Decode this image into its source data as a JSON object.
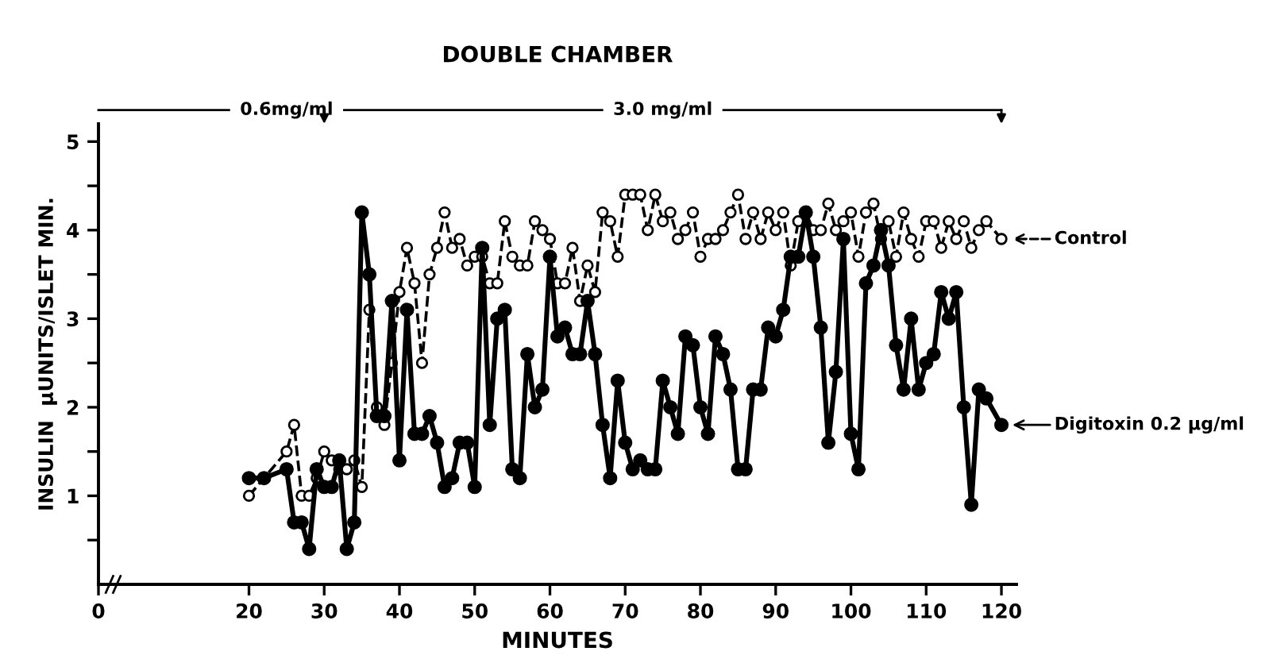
{
  "chart_data": {
    "type": "line",
    "title": "DOUBLE CHAMBER",
    "xlabel": "MINUTES",
    "ylabel": "INSULIN  µUNITS/ISLET MIN.",
    "xlim": [
      0,
      122
    ],
    "xticks": [
      0,
      20,
      30,
      40,
      50,
      60,
      70,
      80,
      90,
      100,
      110,
      120
    ],
    "ylim": [
      0,
      5.2
    ],
    "yticks": [
      {
        "value": 0.5,
        "label": null
      },
      1,
      {
        "value": 1.5,
        "label": null
      },
      2,
      {
        "value": 2.5,
        "label": null
      },
      3,
      {
        "value": 3.5,
        "label": null
      },
      4,
      {
        "value": 4.5,
        "label": null
      },
      5
    ],
    "annotations": [
      "0.6mg/ml",
      "3.0 mg/ml"
    ],
    "grid": false,
    "legend": "right",
    "marker": "circle",
    "series": [
      {
        "name": "Control",
        "color": "#000000",
        "line_style": "dashed",
        "x": [
          20,
          25,
          26,
          27,
          28,
          29,
          30,
          31,
          32,
          33,
          34,
          35,
          36,
          37,
          38,
          39,
          40,
          41,
          42,
          43,
          44,
          45,
          46,
          47,
          48,
          49,
          50,
          51,
          52,
          53,
          54,
          55,
          56,
          57,
          58,
          59,
          60,
          61,
          62,
          63,
          64,
          65,
          66,
          67,
          68,
          69,
          70,
          71,
          72,
          73,
          74,
          75,
          76,
          77,
          78,
          79,
          80,
          81,
          82,
          83,
          84,
          85,
          86,
          87,
          88,
          89,
          90,
          91,
          92,
          93,
          94,
          95,
          96,
          97,
          98,
          99,
          100,
          101,
          102,
          103,
          104,
          105,
          106,
          107,
          108,
          109,
          110,
          111,
          112,
          113,
          114,
          115,
          116,
          117,
          118,
          120
        ],
        "values": [
          1.0,
          1.5,
          1.8,
          1.0,
          1.0,
          1.2,
          1.5,
          1.4,
          1.3,
          1.3,
          1.4,
          1.1,
          3.1,
          2.0,
          1.8,
          2.5,
          3.3,
          3.8,
          3.4,
          2.5,
          3.5,
          3.8,
          4.2,
          3.8,
          3.9,
          3.6,
          3.7,
          3.7,
          3.4,
          3.4,
          4.1,
          3.7,
          3.6,
          3.6,
          4.1,
          4.0,
          3.9,
          3.4,
          3.4,
          3.8,
          3.2,
          3.6,
          3.3,
          4.2,
          4.1,
          3.7,
          4.4,
          4.4,
          4.4,
          4.0,
          4.4,
          4.1,
          4.2,
          3.9,
          4.0,
          4.2,
          3.7,
          3.9,
          3.9,
          4.0,
          4.2,
          4.4,
          3.9,
          4.2,
          3.9,
          4.2,
          4.0,
          4.2,
          3.6,
          4.1,
          4.2,
          4.0,
          4.0,
          4.3,
          4.0,
          4.1,
          4.2,
          3.7,
          4.2,
          4.3,
          3.9,
          4.1,
          3.7,
          4.2,
          3.9,
          3.7,
          4.1,
          4.1,
          3.8,
          4.1,
          3.9,
          4.1,
          3.8,
          4.0,
          4.1,
          3.9
        ]
      },
      {
        "name": "Digitoxin 0.2 µg/ml",
        "color": "#000000",
        "line_style": "solid",
        "x": [
          20,
          22,
          25,
          26,
          27,
          28,
          29,
          30,
          31,
          32,
          33,
          34,
          35,
          36,
          37,
          38,
          39,
          40,
          41,
          42,
          43,
          44,
          45,
          46,
          47,
          48,
          49,
          50,
          51,
          52,
          53,
          54,
          55,
          56,
          57,
          58,
          59,
          60,
          61,
          62,
          63,
          64,
          65,
          66,
          67,
          68,
          69,
          70,
          71,
          72,
          73,
          74,
          75,
          76,
          77,
          78,
          79,
          80,
          81,
          82,
          83,
          84,
          85,
          86,
          87,
          88,
          89,
          90,
          91,
          92,
          93,
          94,
          95,
          96,
          97,
          98,
          99,
          100,
          101,
          102,
          103,
          104,
          105,
          106,
          107,
          108,
          109,
          110,
          111,
          112,
          113,
          114,
          115,
          116,
          117,
          118,
          120
        ],
        "values": [
          1.2,
          1.2,
          1.3,
          0.7,
          0.7,
          0.4,
          1.3,
          1.1,
          1.1,
          1.4,
          0.4,
          0.7,
          4.2,
          3.5,
          1.9,
          1.9,
          3.2,
          1.4,
          3.1,
          1.7,
          1.7,
          1.9,
          1.6,
          1.1,
          1.2,
          1.6,
          1.6,
          1.1,
          3.8,
          1.8,
          3.0,
          3.1,
          1.3,
          1.2,
          2.6,
          2.0,
          2.2,
          3.7,
          2.8,
          2.9,
          2.6,
          2.6,
          3.2,
          2.6,
          1.8,
          1.2,
          2.3,
          1.6,
          1.3,
          1.4,
          1.3,
          1.3,
          2.3,
          2.0,
          1.7,
          2.8,
          2.7,
          2.0,
          1.7,
          2.8,
          2.6,
          2.2,
          1.3,
          1.3,
          2.2,
          2.2,
          2.9,
          2.8,
          3.1,
          3.7,
          3.7,
          4.2,
          3.7,
          2.9,
          1.6,
          2.4,
          3.9,
          1.7,
          1.3,
          3.4,
          3.6,
          4.0,
          3.6,
          2.7,
          2.2,
          3.0,
          2.2,
          2.5,
          2.6,
          3.3,
          3.0,
          3.3,
          2.0,
          0.9,
          2.2,
          2.1,
          1.8
        ]
      }
    ]
  }
}
